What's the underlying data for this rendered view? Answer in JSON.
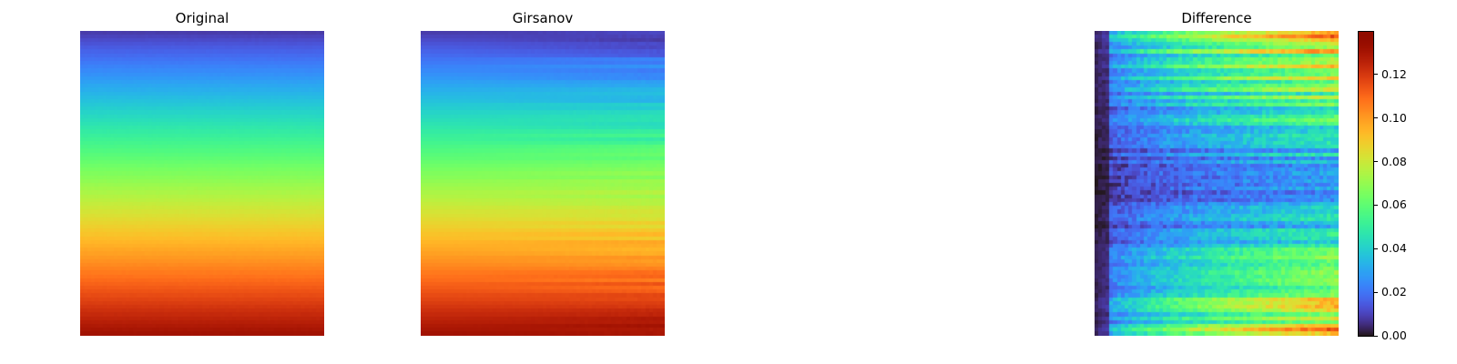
{
  "colormap": "turbo",
  "chart_data": [
    {
      "type": "heatmap",
      "title": "Original",
      "description_rows": "smooth vertical gradient from low (top) to high (bottom); uniform across columns",
      "range": [
        0,
        1
      ],
      "axes": "off"
    },
    {
      "type": "heatmap",
      "title": "Girsanov",
      "description_rows": "same vertical gradient with small row-wise noise increasing toward the right",
      "range": [
        0,
        1
      ],
      "axes": "off"
    },
    {
      "type": "heatmap",
      "title": "Difference",
      "range": [
        0,
        0.14
      ],
      "axes": "off",
      "colorbar": {
        "ticks": [
          "0.00",
          "0.02",
          "0.04",
          "0.06",
          "0.08",
          "0.10",
          "0.12"
        ],
        "tick_values": [
          0,
          0.02,
          0.04,
          0.06,
          0.08,
          0.1,
          0.12
        ],
        "vmin": 0,
        "vmax": 0.14
      }
    }
  ]
}
